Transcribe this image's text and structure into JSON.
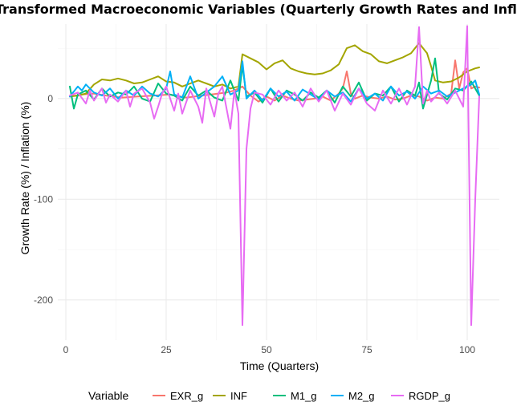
{
  "chart_data": {
    "type": "line",
    "title": "Transformed Macroeconomic Variables (Quarterly Growth Rates and Inflation)",
    "xlabel": "Time (Quarters)",
    "ylabel": "Growth Rate (%) / Inflation (%)",
    "xlim": [
      -2,
      108
    ],
    "ylim": [
      -240,
      74
    ],
    "x_ticks": [
      0,
      25,
      50,
      75,
      100
    ],
    "y_ticks": [
      -200,
      -100,
      0
    ],
    "grid": true,
    "legend_title": "Variable",
    "legend_position": "bottom",
    "series": [
      {
        "name": "EXR_g",
        "color": "#F8766D",
        "x": [
          1,
          4,
          7,
          10,
          14,
          18,
          22,
          26,
          30,
          34,
          38,
          40,
          42,
          44,
          46,
          48,
          50,
          52,
          54,
          56,
          58,
          60,
          62,
          64,
          66,
          68,
          69,
          70,
          71,
          72,
          74,
          76,
          78,
          80,
          82,
          84,
          86,
          88,
          90,
          92,
          94,
          96,
          97,
          98,
          99,
          100,
          101,
          102,
          103
        ],
        "y": [
          2,
          4,
          5,
          3,
          1,
          2,
          3,
          4,
          1,
          3,
          5,
          6,
          8,
          12,
          3,
          -3,
          2,
          -2,
          3,
          0,
          -2,
          -1,
          0,
          2,
          -2,
          5,
          10,
          27,
          5,
          0,
          3,
          1,
          0,
          2,
          -1,
          0,
          3,
          2,
          -2,
          1,
          0,
          5,
          38,
          10,
          26,
          30,
          10,
          12,
          11
        ]
      },
      {
        "name": "INF",
        "color": "#A3A500",
        "x": [
          1,
          3,
          5,
          7,
          9,
          11,
          13,
          15,
          17,
          19,
          21,
          23,
          25,
          27,
          29,
          31,
          33,
          35,
          37,
          39,
          41,
          43,
          44,
          46,
          48,
          50,
          52,
          54,
          56,
          58,
          60,
          62,
          64,
          66,
          68,
          70,
          72,
          74,
          76,
          78,
          80,
          82,
          84,
          86,
          88,
          89,
          90,
          91,
          92,
          94,
          96,
          98,
          100,
          102,
          103
        ],
        "y": [
          2,
          3,
          5,
          14,
          19,
          18,
          20,
          18,
          15,
          16,
          19,
          22,
          17,
          16,
          12,
          15,
          18,
          15,
          12,
          14,
          10,
          12,
          44,
          40,
          36,
          29,
          35,
          38,
          30,
          27,
          25,
          24,
          25,
          28,
          34,
          50,
          53,
          47,
          44,
          37,
          35,
          38,
          41,
          45,
          55,
          50,
          45,
          32,
          18,
          16,
          17,
          21,
          27,
          30,
          31
        ]
      },
      {
        "name": "M1_g",
        "color": "#00BF7D",
        "x": [
          1,
          2,
          3,
          5,
          7,
          9,
          11,
          13,
          15,
          17,
          19,
          21,
          23,
          25,
          27,
          29,
          31,
          33,
          35,
          37,
          39,
          41,
          43,
          44,
          45,
          47,
          49,
          51,
          53,
          55,
          57,
          59,
          61,
          63,
          65,
          67,
          69,
          71,
          73,
          75,
          77,
          79,
          81,
          83,
          85,
          87,
          88,
          89,
          91,
          92,
          93,
          95,
          97,
          99,
          101,
          103
        ],
        "y": [
          12,
          -10,
          4,
          8,
          -1,
          10,
          2,
          6,
          4,
          12,
          0,
          -3,
          15,
          5,
          3,
          -2,
          12,
          3,
          8,
          1,
          -2,
          18,
          -2,
          33,
          2,
          6,
          -4,
          10,
          -3,
          8,
          4,
          -2,
          6,
          1,
          8,
          -4,
          12,
          2,
          16,
          -2,
          5,
          3,
          12,
          -3,
          8,
          3,
          16,
          -10,
          18,
          40,
          5,
          -1,
          10,
          8,
          17,
          3
        ]
      },
      {
        "name": "M2_g",
        "color": "#00B0F6",
        "x": [
          1,
          3,
          4,
          5,
          7,
          9,
          11,
          13,
          15,
          17,
          19,
          21,
          23,
          25,
          26,
          27,
          29,
          31,
          33,
          35,
          37,
          39,
          41,
          43,
          44,
          45,
          47,
          49,
          51,
          53,
          55,
          57,
          59,
          61,
          63,
          65,
          67,
          69,
          71,
          73,
          75,
          77,
          79,
          81,
          83,
          85,
          87,
          89,
          91,
          93,
          95,
          97,
          99,
          101,
          102,
          103
        ],
        "y": [
          2,
          12,
          8,
          14,
          6,
          3,
          10,
          0,
          8,
          3,
          12,
          5,
          2,
          10,
          27,
          4,
          1,
          22,
          0,
          6,
          12,
          22,
          4,
          8,
          37,
          0,
          8,
          -2,
          10,
          2,
          7,
          -2,
          9,
          4,
          -1,
          8,
          2,
          6,
          -3,
          10,
          0,
          5,
          -2,
          12,
          3,
          7,
          0,
          12,
          5,
          8,
          2,
          6,
          10,
          14,
          18,
          4
        ]
      },
      {
        "name": "RGDP_g",
        "color": "#E76BF3",
        "x": [
          1,
          3,
          5,
          6,
          7,
          9,
          10,
          11,
          13,
          15,
          16,
          17,
          19,
          21,
          22,
          23,
          24,
          25,
          27,
          28,
          29,
          31,
          33,
          34,
          35,
          37,
          38,
          39,
          41,
          42,
          43,
          44,
          45,
          46,
          47,
          49,
          51,
          53,
          55,
          57,
          59,
          61,
          63,
          65,
          67,
          69,
          71,
          73,
          75,
          77,
          79,
          81,
          83,
          85,
          87,
          88,
          89,
          90,
          91,
          93,
          95,
          97,
          99,
          100,
          101,
          102,
          103
        ],
        "y": [
          3,
          6,
          -5,
          8,
          -2,
          10,
          -4,
          4,
          -3,
          8,
          -8,
          5,
          10,
          -4,
          -20,
          -8,
          5,
          12,
          -12,
          5,
          -15,
          8,
          -8,
          -24,
          10,
          -18,
          5,
          12,
          -30,
          8,
          -15,
          -225,
          -50,
          -10,
          6,
          4,
          -6,
          8,
          -2,
          6,
          -8,
          10,
          -3,
          8,
          -12,
          5,
          -6,
          10,
          -5,
          -12,
          8,
          -5,
          10,
          -6,
          12,
          71,
          -5,
          8,
          -3,
          6,
          -5,
          8,
          -8,
          72,
          -225,
          -100,
          2
        ]
      }
    ]
  }
}
